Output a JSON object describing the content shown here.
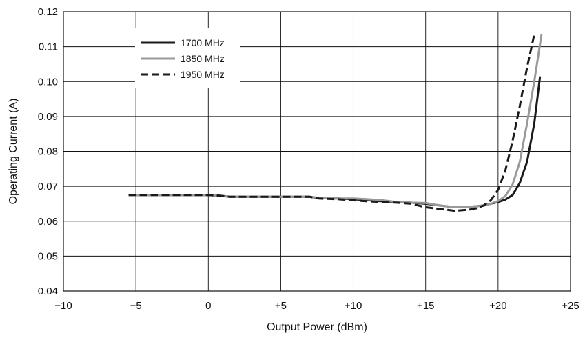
{
  "chart_data": {
    "type": "line",
    "title": "",
    "xlabel": "Output Power (dBm)",
    "ylabel": "Operating Current (A)",
    "xlim": [
      -10,
      25
    ],
    "ylim": [
      0.04,
      0.12
    ],
    "x_ticks": [
      -10,
      -5,
      0,
      5,
      10,
      15,
      20,
      25
    ],
    "x_tick_labels": [
      "−10",
      "−5",
      "0",
      "+5",
      "+10",
      "+15",
      "+20",
      "+25"
    ],
    "y_ticks": [
      0.04,
      0.05,
      0.06,
      0.07,
      0.08,
      0.09,
      0.1,
      0.11,
      0.12
    ],
    "y_tick_labels": [
      "0.04",
      "0.05",
      "0.06",
      "0.07",
      "0.08",
      "0.09",
      "0.10",
      "0.11",
      "0.12"
    ],
    "grid": true,
    "legend_position": "top-left",
    "series": [
      {
        "name": "1700 MHz",
        "color": "#1a1a1a",
        "dash": "solid",
        "x": [
          -5.5,
          -3,
          0,
          0.8,
          1.5,
          4,
          7,
          7.6,
          9,
          10,
          11,
          12,
          13,
          14,
          15,
          16,
          17,
          18,
          19,
          19.5,
          20,
          20.5,
          21,
          21.5,
          22,
          22.5,
          22.9
        ],
        "y": [
          0.0675,
          0.0675,
          0.0675,
          0.0673,
          0.067,
          0.067,
          0.067,
          0.0666,
          0.0665,
          0.0663,
          0.066,
          0.0657,
          0.0655,
          0.0653,
          0.065,
          0.0645,
          0.064,
          0.0641,
          0.0645,
          0.065,
          0.0655,
          0.0662,
          0.0675,
          0.071,
          0.077,
          0.088,
          0.1015
        ]
      },
      {
        "name": "1850 MHz",
        "color": "#999999",
        "dash": "solid",
        "x": [
          -5.5,
          -3,
          0,
          0.8,
          1.5,
          4,
          7,
          7.6,
          9,
          10,
          11,
          12,
          13,
          14,
          15,
          16,
          17,
          18,
          19,
          19.5,
          20,
          20.5,
          21,
          21.5,
          22,
          22.5,
          23
        ],
        "y": [
          0.0675,
          0.0675,
          0.0675,
          0.0673,
          0.067,
          0.067,
          0.067,
          0.0667,
          0.0665,
          0.0665,
          0.0663,
          0.066,
          0.0655,
          0.0653,
          0.0652,
          0.0645,
          0.064,
          0.0641,
          0.0645,
          0.065,
          0.0658,
          0.0672,
          0.0705,
          0.077,
          0.088,
          0.1,
          0.1135
        ]
      },
      {
        "name": "1950 MHz",
        "color": "#1a1a1a",
        "dash": "dashed",
        "x": [
          -5.5,
          -3,
          0,
          0.8,
          1.5,
          4,
          7,
          7.6,
          9,
          10,
          11,
          12,
          13,
          14,
          15,
          16,
          17,
          18,
          18.5,
          19,
          19.5,
          20,
          20.5,
          21,
          21.5,
          22,
          22.5
        ],
        "y": [
          0.0675,
          0.0675,
          0.0675,
          0.0673,
          0.067,
          0.067,
          0.067,
          0.0665,
          0.0663,
          0.066,
          0.0657,
          0.0655,
          0.0653,
          0.065,
          0.064,
          0.0635,
          0.063,
          0.0633,
          0.0637,
          0.0645,
          0.066,
          0.069,
          0.0745,
          0.083,
          0.093,
          0.104,
          0.1135
        ]
      }
    ]
  }
}
